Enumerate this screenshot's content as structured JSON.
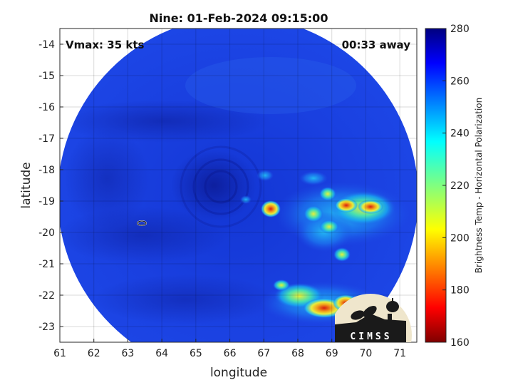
{
  "title": "Nine: 01-Feb-2024 09:15:00",
  "annotations": {
    "vmax": "Vmax: 35 kts",
    "time_away": "00:33 away"
  },
  "axes": {
    "xlabel": "longitude",
    "ylabel": "latitude",
    "xlim": [
      61,
      71.5
    ],
    "ylim": [
      -23.5,
      -13.5
    ],
    "xticks": [
      "61",
      "62",
      "63",
      "64",
      "65",
      "66",
      "67",
      "68",
      "69",
      "70",
      "71"
    ],
    "yticks": [
      "-14",
      "-15",
      "-16",
      "-17",
      "-18",
      "-19",
      "-20",
      "-21",
      "-22",
      "-23"
    ],
    "grid": true
  },
  "colorbar": {
    "label": "Brightness Temp - Horizontal Polarization",
    "ticks": [
      "280",
      "260",
      "240",
      "220",
      "200",
      "180",
      "160"
    ],
    "range": [
      160,
      280
    ],
    "colormap": "jet"
  },
  "logo": {
    "text": "CIMSS"
  },
  "colors": {
    "swath_base": "#1537d6",
    "cold_core": "#0d20a8",
    "warm_cells": "#f3e33a",
    "hot_cells": "#e53512"
  }
}
